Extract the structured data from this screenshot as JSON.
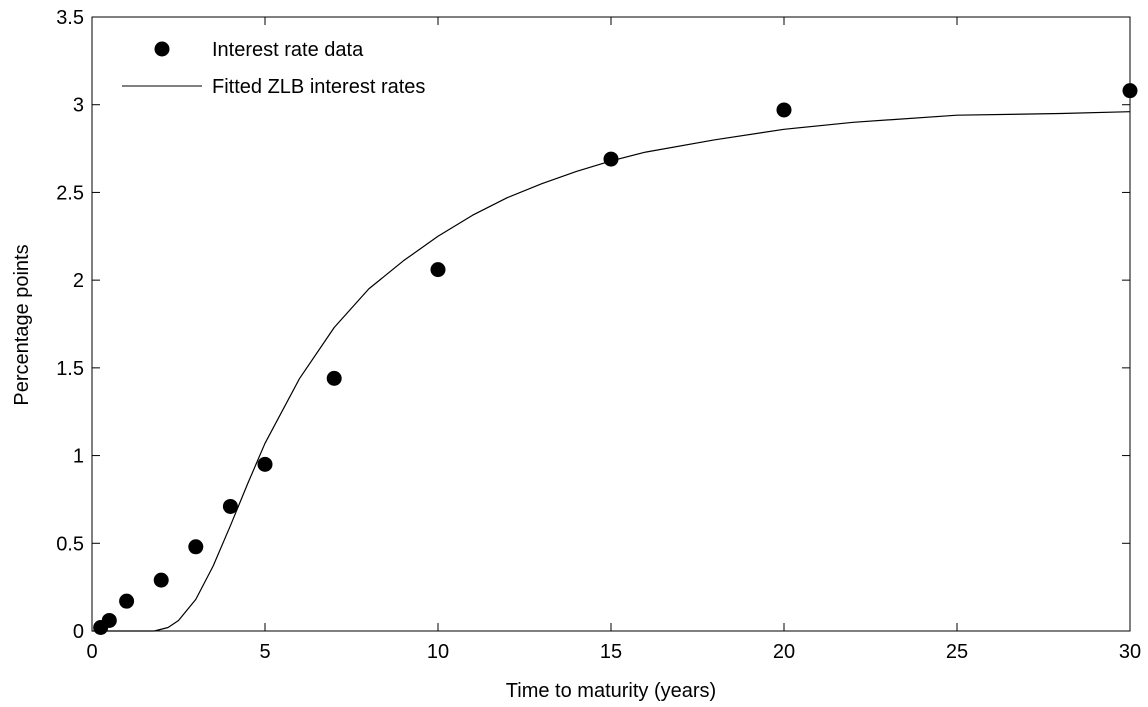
{
  "chart_data": {
    "type": "scatter",
    "title": "",
    "xlabel": "Time to maturity (years)",
    "ylabel": "Percentage points",
    "xlim": [
      0,
      30
    ],
    "ylim": [
      0,
      3.5
    ],
    "xticks": [
      0,
      5,
      10,
      15,
      20,
      25,
      30
    ],
    "yticks": [
      0,
      0.5,
      1,
      1.5,
      2,
      2.5,
      3,
      3.5
    ],
    "xtick_labels": [
      "0",
      "5",
      "10",
      "15",
      "20",
      "25",
      "30"
    ],
    "ytick_labels": [
      "0",
      "0.5",
      "1",
      "1.5",
      "2",
      "2.5",
      "3",
      "3.5"
    ],
    "grid": false,
    "legend_position": "top-left",
    "series": [
      {
        "name": "Interest rate data",
        "kind": "markers",
        "color": "#000000",
        "x": [
          0.25,
          0.5,
          1,
          2,
          3,
          4,
          5,
          7,
          10,
          15,
          20,
          30
        ],
        "y": [
          0.02,
          0.06,
          0.17,
          0.29,
          0.48,
          0.71,
          0.95,
          1.44,
          2.06,
          2.69,
          2.97,
          3.08
        ]
      },
      {
        "name": "Fitted ZLB interest rates",
        "kind": "line",
        "color": "#000000",
        "x": [
          0,
          1,
          1.8,
          2.2,
          2.5,
          3,
          3.5,
          4,
          4.5,
          5,
          6,
          7,
          8,
          9,
          10,
          11,
          12,
          13,
          14,
          15,
          16,
          18,
          20,
          22,
          25,
          28,
          30
        ],
        "y": [
          0,
          0,
          0,
          0.02,
          0.06,
          0.18,
          0.37,
          0.6,
          0.84,
          1.07,
          1.44,
          1.73,
          1.95,
          2.11,
          2.25,
          2.37,
          2.47,
          2.55,
          2.62,
          2.68,
          2.73,
          2.8,
          2.86,
          2.9,
          2.94,
          2.95,
          2.96
        ]
      }
    ]
  }
}
